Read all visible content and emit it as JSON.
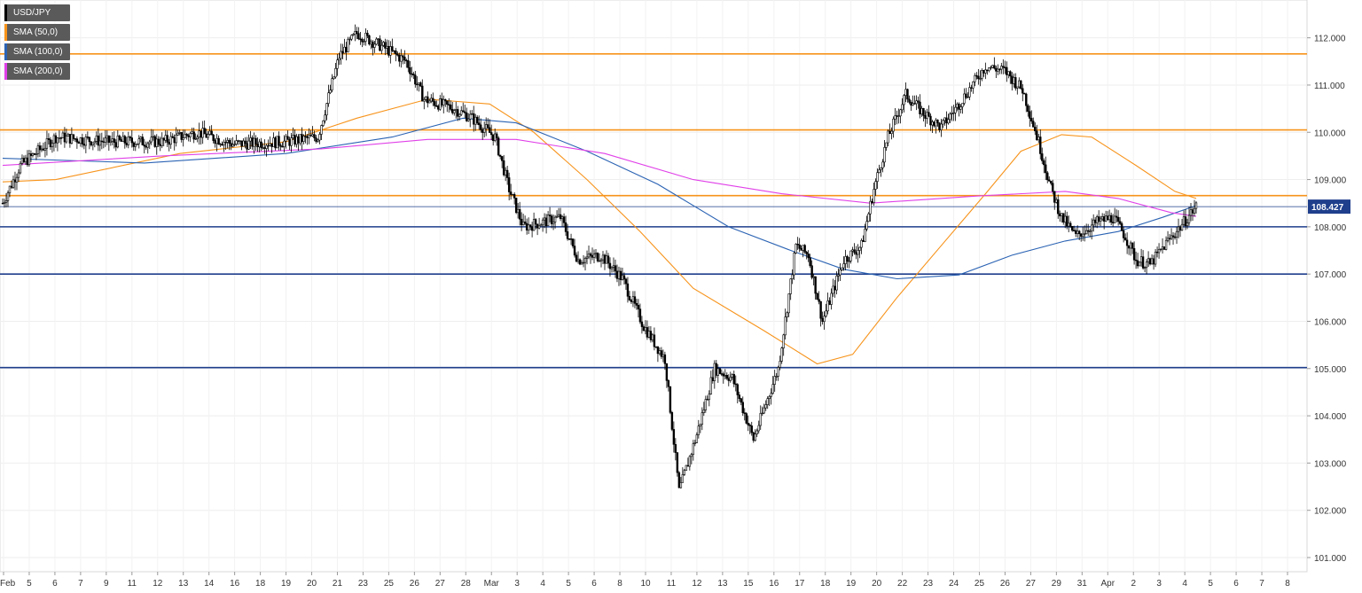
{
  "legend": [
    {
      "label": "USD/JPY",
      "color": "#000000"
    },
    {
      "label": "SMA (50,0)",
      "color": "#f7931a"
    },
    {
      "label": "SMA (100,0)",
      "color": "#2b63b3"
    },
    {
      "label": "SMA (200,0)",
      "color": "#e040e8"
    }
  ],
  "chart_data": {
    "type": "candlestick",
    "symbol": "USD/JPY",
    "ylim": [
      100.7,
      112.8
    ],
    "yticks": [
      "101.000",
      "102.000",
      "103.000",
      "104.000",
      "105.000",
      "106.000",
      "107.000",
      "108.000",
      "109.000",
      "110.000",
      "111.000",
      "112.000"
    ],
    "current_price": "108.427",
    "x_labels": [
      "Feb",
      "5",
      "6",
      "7",
      "9",
      "11",
      "12",
      "13",
      "14",
      "16",
      "18",
      "19",
      "20",
      "21",
      "23",
      "25",
      "26",
      "27",
      "28",
      "Mar",
      "3",
      "4",
      "5",
      "6",
      "8",
      "10",
      "11",
      "12",
      "13",
      "15",
      "16",
      "17",
      "18",
      "19",
      "20",
      "22",
      "23",
      "24",
      "25",
      "26",
      "27",
      "29",
      "31",
      "Apr",
      "2",
      "3",
      "4",
      "5",
      "6",
      "7",
      "8"
    ],
    "horizontal_levels": [
      {
        "value": 111.66,
        "color": "#f7931a"
      },
      {
        "value": 110.05,
        "color": "#f7931a"
      },
      {
        "value": 108.66,
        "color": "#f7931a"
      },
      {
        "value": 108.0,
        "color": "#1f3f8c"
      },
      {
        "value": 107.0,
        "color": "#1f3f8c"
      },
      {
        "value": 105.02,
        "color": "#1f3f8c"
      }
    ],
    "close_anchors": [
      [
        0,
        108.5
      ],
      [
        10,
        109.3
      ],
      [
        30,
        109.9
      ],
      [
        60,
        109.8
      ],
      [
        90,
        109.8
      ],
      [
        110,
        110.0
      ],
      [
        130,
        109.75
      ],
      [
        160,
        109.8
      ],
      [
        178,
        109.9
      ],
      [
        190,
        111.6
      ],
      [
        200,
        112.1
      ],
      [
        215,
        111.8
      ],
      [
        228,
        111.5
      ],
      [
        238,
        110.7
      ],
      [
        255,
        110.5
      ],
      [
        265,
        110.3
      ],
      [
        278,
        109.9
      ],
      [
        286,
        108.8
      ],
      [
        294,
        108.0
      ],
      [
        305,
        108.1
      ],
      [
        315,
        108.2
      ],
      [
        325,
        107.3
      ],
      [
        338,
        107.4
      ],
      [
        350,
        106.9
      ],
      [
        362,
        105.9
      ],
      [
        374,
        105.2
      ],
      [
        382,
        102.4
      ],
      [
        392,
        103.6
      ],
      [
        402,
        105.0
      ],
      [
        412,
        104.8
      ],
      [
        424,
        103.5
      ],
      [
        438,
        105.0
      ],
      [
        448,
        107.6
      ],
      [
        455,
        107.4
      ],
      [
        463,
        106.0
      ],
      [
        475,
        107.3
      ],
      [
        485,
        107.6
      ],
      [
        492,
        108.8
      ],
      [
        500,
        109.9
      ],
      [
        510,
        110.8
      ],
      [
        520,
        110.4
      ],
      [
        530,
        110.1
      ],
      [
        540,
        110.6
      ],
      [
        555,
        111.4
      ],
      [
        566,
        111.3
      ],
      [
        576,
        110.9
      ],
      [
        585,
        109.8
      ],
      [
        592,
        108.8
      ],
      [
        598,
        108.2
      ],
      [
        606,
        107.8
      ],
      [
        618,
        108.1
      ],
      [
        627,
        108.2
      ],
      [
        634,
        107.8
      ],
      [
        640,
        107.3
      ],
      [
        648,
        107.2
      ],
      [
        658,
        107.7
      ],
      [
        665,
        108.0
      ],
      [
        674,
        108.43
      ]
    ],
    "sma50": [
      [
        0,
        108.95
      ],
      [
        30,
        109.0
      ],
      [
        100,
        109.55
      ],
      [
        160,
        109.8
      ],
      [
        200,
        110.3
      ],
      [
        240,
        110.7
      ],
      [
        275,
        110.6
      ],
      [
        300,
        110.0
      ],
      [
        330,
        109.0
      ],
      [
        360,
        107.9
      ],
      [
        390,
        106.7
      ],
      [
        430,
        105.8
      ],
      [
        460,
        105.1
      ],
      [
        480,
        105.3
      ],
      [
        505,
        106.5
      ],
      [
        530,
        107.6
      ],
      [
        555,
        108.7
      ],
      [
        575,
        109.6
      ],
      [
        598,
        109.95
      ],
      [
        615,
        109.9
      ],
      [
        640,
        109.3
      ],
      [
        662,
        108.75
      ],
      [
        674,
        108.6
      ]
    ],
    "sma100": [
      [
        0,
        109.45
      ],
      [
        80,
        109.35
      ],
      [
        160,
        109.55
      ],
      [
        220,
        109.9
      ],
      [
        260,
        110.3
      ],
      [
        290,
        110.2
      ],
      [
        330,
        109.6
      ],
      [
        370,
        108.9
      ],
      [
        410,
        108.0
      ],
      [
        445,
        107.5
      ],
      [
        475,
        107.1
      ],
      [
        505,
        106.9
      ],
      [
        540,
        106.98
      ],
      [
        570,
        107.4
      ],
      [
        600,
        107.7
      ],
      [
        630,
        107.9
      ],
      [
        655,
        108.2
      ],
      [
        674,
        108.45
      ]
    ],
    "sma200": [
      [
        0,
        109.3
      ],
      [
        90,
        109.5
      ],
      [
        180,
        109.65
      ],
      [
        240,
        109.85
      ],
      [
        290,
        109.85
      ],
      [
        340,
        109.55
      ],
      [
        390,
        109.0
      ],
      [
        440,
        108.7
      ],
      [
        490,
        108.5
      ],
      [
        550,
        108.65
      ],
      [
        600,
        108.75
      ],
      [
        630,
        108.6
      ],
      [
        660,
        108.3
      ],
      [
        674,
        108.22
      ]
    ]
  }
}
